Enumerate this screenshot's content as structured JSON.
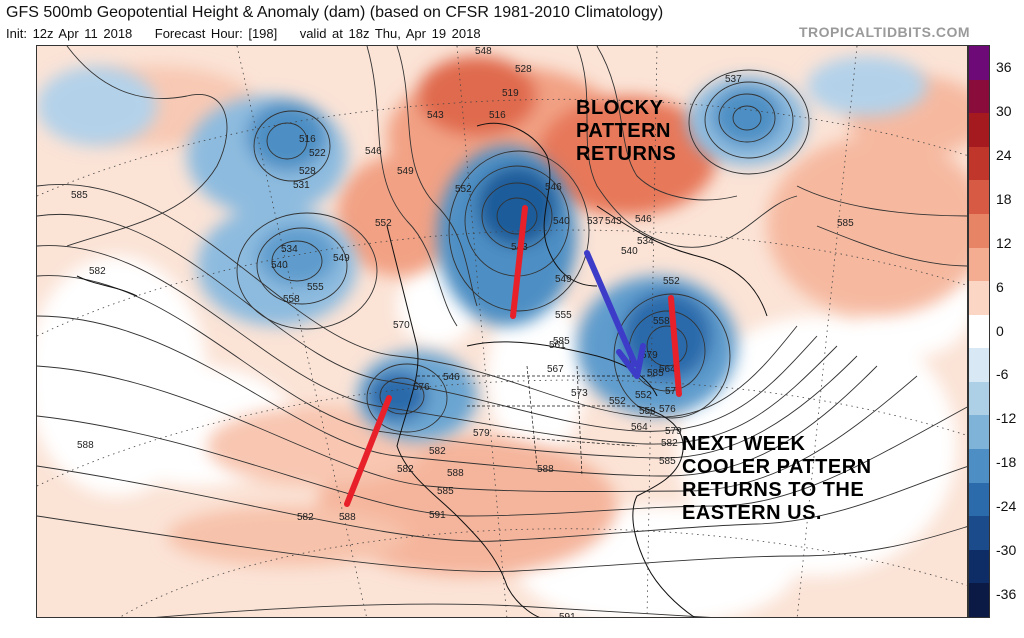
{
  "header": {
    "title": "GFS 500mb Geopotential Height & Anomaly (dam) (based on CFSR 1981-2010 Climatology)",
    "init": "Init: 12z Apr 11 2018",
    "forecast_hour": "Forecast Hour: [198]",
    "valid": "valid at 18z Thu, Apr 19 2018",
    "credit": "TROPICALTIDBITS.COM"
  },
  "colorbar": {
    "ticks": [
      "36",
      "30",
      "24",
      "18",
      "12",
      "6",
      "0",
      "-6",
      "-12",
      "-18",
      "-24",
      "-30",
      "-36"
    ],
    "colors": [
      "#6e0a78",
      "#8a0c3a",
      "#a51a1e",
      "#c0362a",
      "#d65a44",
      "#e88466",
      "#f4ad90",
      "#fcd6c4",
      "#ffffff",
      "#d8e8f4",
      "#aed0e6",
      "#7fb3d8",
      "#4d8fc4",
      "#2b6bab",
      "#1b4b8a",
      "#0e2c66",
      "#0a1a44"
    ]
  },
  "annotations": {
    "blocky": [
      "BLOCKY",
      "PATTERN",
      "RETURNS"
    ],
    "next_week": [
      "NEXT WEEK",
      "COOLER PATTERN",
      "RETURNS TO THE",
      "EASTERN US."
    ]
  },
  "contour_labels": [
    "548",
    "528",
    "519",
    "516",
    "543",
    "537",
    "516",
    "522",
    "528",
    "531",
    "585",
    "582",
    "534",
    "540",
    "549",
    "558",
    "555",
    "543",
    "546",
    "549",
    "552",
    "552",
    "546",
    "540",
    "543",
    "537",
    "534",
    "549",
    "555",
    "561",
    "567",
    "573",
    "579",
    "585",
    "552",
    "558",
    "564",
    "570",
    "576",
    "579",
    "582",
    "588",
    "591",
    "591",
    "585",
    "582",
    "588",
    "588",
    "582",
    "588",
    "585",
    "546",
    "552",
    "585",
    "540",
    "546",
    "552",
    "558",
    "564",
    "570",
    "576",
    "579",
    "582",
    "585"
  ]
}
